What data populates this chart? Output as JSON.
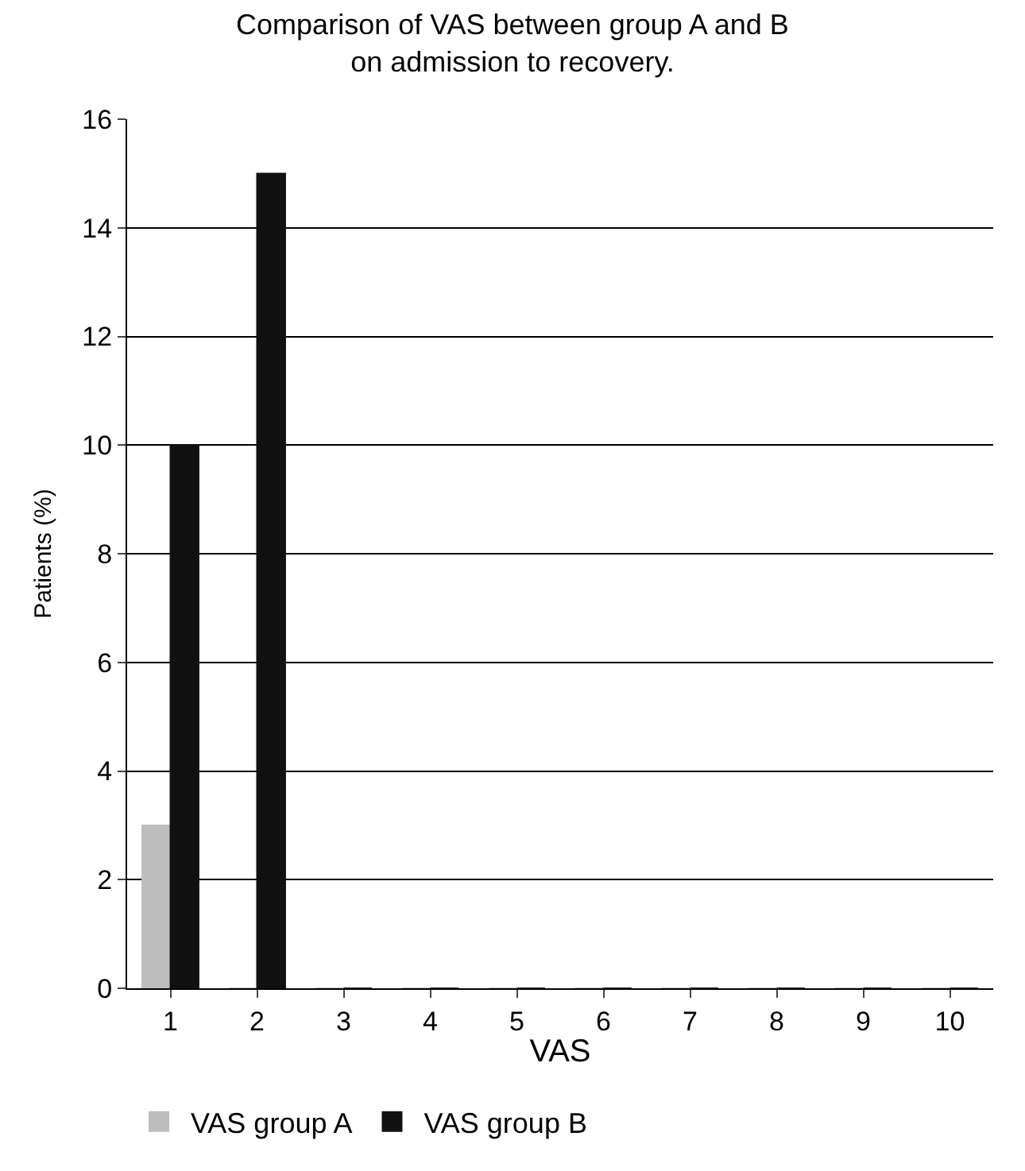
{
  "chart_data": {
    "type": "bar",
    "title": "Comparison of VAS between group A and B\non admission to recovery.",
    "xlabel": "VAS",
    "ylabel": "Patients (%)",
    "categories": [
      "1",
      "2",
      "3",
      "4",
      "5",
      "6",
      "7",
      "8",
      "9",
      "10"
    ],
    "series": [
      {
        "name": "VAS group A",
        "color": "#bdbdbd",
        "values": [
          3,
          0,
          0,
          0,
          0,
          0,
          0,
          0,
          0,
          0
        ]
      },
      {
        "name": "VAS group B",
        "color": "#111111",
        "values": [
          10,
          15,
          0,
          0,
          0,
          0,
          0,
          0,
          0,
          0
        ]
      }
    ],
    "ylim": [
      0,
      16
    ],
    "yticks": [
      0,
      2,
      4,
      6,
      8,
      10,
      12,
      14,
      16
    ],
    "grid": "y",
    "legend": "bottom left"
  }
}
